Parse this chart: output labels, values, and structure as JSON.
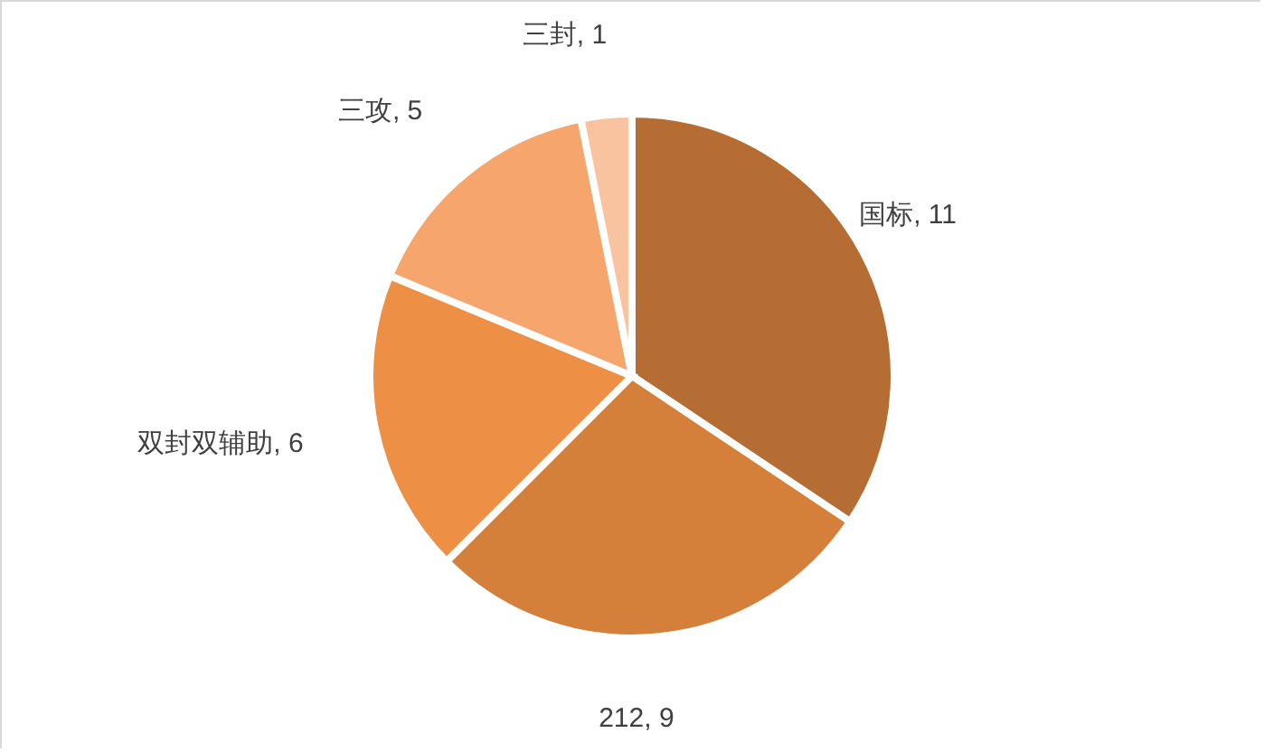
{
  "chart_data": {
    "type": "pie",
    "categories": [
      "国标",
      "212",
      "双封双辅助",
      "三攻",
      "三封"
    ],
    "values": [
      11,
      9,
      6,
      5,
      1
    ],
    "value_labels": [
      ", 11",
      ", 9",
      ", 6",
      ", 5",
      ", 1"
    ],
    "colors": [
      "#b56d33",
      "#d47f3a",
      "#ed8f44",
      "#f6a56d",
      "#f9c3a0"
    ]
  }
}
